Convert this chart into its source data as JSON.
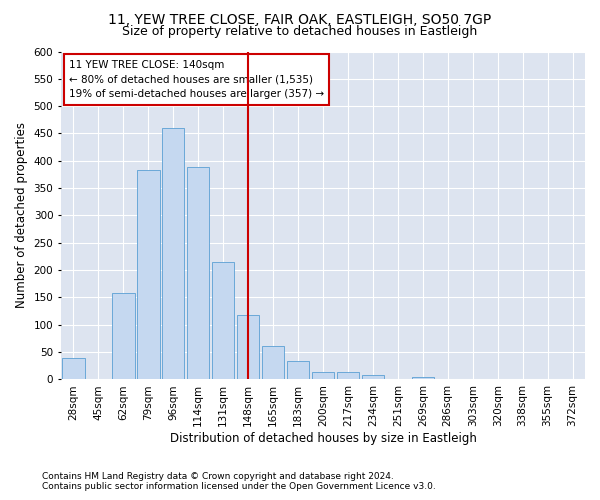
{
  "title": "11, YEW TREE CLOSE, FAIR OAK, EASTLEIGH, SO50 7GP",
  "subtitle": "Size of property relative to detached houses in Eastleigh",
  "xlabel": "Distribution of detached houses by size in Eastleigh",
  "ylabel": "Number of detached properties",
  "footnote1": "Contains HM Land Registry data © Crown copyright and database right 2024.",
  "footnote2": "Contains public sector information licensed under the Open Government Licence v3.0.",
  "annotation_line1": "11 YEW TREE CLOSE: 140sqm",
  "annotation_line2": "← 80% of detached houses are smaller (1,535)",
  "annotation_line3": "19% of semi-detached houses are larger (357) →",
  "bar_labels": [
    "28sqm",
    "45sqm",
    "62sqm",
    "79sqm",
    "96sqm",
    "114sqm",
    "131sqm",
    "148sqm",
    "165sqm",
    "183sqm",
    "200sqm",
    "217sqm",
    "234sqm",
    "251sqm",
    "269sqm",
    "286sqm",
    "303sqm",
    "320sqm",
    "338sqm",
    "355sqm",
    "372sqm"
  ],
  "bar_values": [
    40,
    0,
    158,
    383,
    460,
    388,
    215,
    118,
    62,
    33,
    14,
    14,
    8,
    0,
    5,
    0,
    0,
    0,
    0,
    0,
    0
  ],
  "bar_color": "#c5d8f0",
  "bar_edge_color": "#5a9fd4",
  "redline_index": 7,
  "redline_color": "#cc0000",
  "ylim": [
    0,
    600
  ],
  "yticks": [
    0,
    50,
    100,
    150,
    200,
    250,
    300,
    350,
    400,
    450,
    500,
    550,
    600
  ],
  "fig_bg_color": "#ffffff",
  "plot_bg_color": "#dde4f0",
  "title_fontsize": 10,
  "subtitle_fontsize": 9,
  "axis_label_fontsize": 8.5,
  "tick_fontsize": 7.5,
  "annotation_fontsize": 7.5,
  "footnote_fontsize": 6.5
}
